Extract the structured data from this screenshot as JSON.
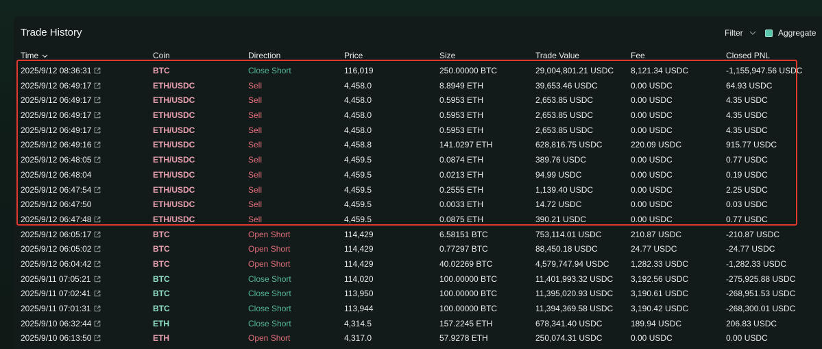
{
  "panel": {
    "title": "Trade History",
    "filter_label": "Filter",
    "aggregate_label": "Aggregate",
    "aggregate_checked": true
  },
  "columns": [
    "Time",
    "Coin",
    "Direction",
    "Price",
    "Size",
    "Trade Value",
    "Fee",
    "Closed PNL"
  ],
  "sort": {
    "column": "Time",
    "direction": "desc"
  },
  "colors": {
    "accent": "#58c7ab",
    "buy_green": "#57b89a",
    "sell_red": "#e36f7b",
    "coin_pink": "#e9a0b0",
    "highlight_red": "#e03a2e",
    "panel_bg": "#121b1a"
  },
  "rows": [
    {
      "time": "2025/9/12 08:36:31",
      "link": true,
      "coin": "BTC",
      "coin_color": "pink",
      "direction": "Close Short",
      "dir_color": "green",
      "price": "116,019",
      "size": "250.00000 BTC",
      "trade_value": "29,004,801.21 USDC",
      "fee": "8,121.34 USDC",
      "pnl": "-1,155,947.56 USDC"
    },
    {
      "time": "2025/9/12 06:49:17",
      "link": true,
      "coin": "ETH/USDC",
      "coin_color": "pink",
      "direction": "Sell",
      "dir_color": "red",
      "price": "4,458.0",
      "size": "8.8949 ETH",
      "trade_value": "39,653.46 USDC",
      "fee": "0.00 USDC",
      "pnl": "64.93 USDC"
    },
    {
      "time": "2025/9/12 06:49:17",
      "link": true,
      "coin": "ETH/USDC",
      "coin_color": "pink",
      "direction": "Sell",
      "dir_color": "red",
      "price": "4,458.0",
      "size": "0.5953 ETH",
      "trade_value": "2,653.85 USDC",
      "fee": "0.00 USDC",
      "pnl": "4.35 USDC"
    },
    {
      "time": "2025/9/12 06:49:17",
      "link": true,
      "coin": "ETH/USDC",
      "coin_color": "pink",
      "direction": "Sell",
      "dir_color": "red",
      "price": "4,458.0",
      "size": "0.5953 ETH",
      "trade_value": "2,653.85 USDC",
      "fee": "0.00 USDC",
      "pnl": "4.35 USDC"
    },
    {
      "time": "2025/9/12 06:49:17",
      "link": true,
      "coin": "ETH/USDC",
      "coin_color": "pink",
      "direction": "Sell",
      "dir_color": "red",
      "price": "4,458.0",
      "size": "0.5953 ETH",
      "trade_value": "2,653.85 USDC",
      "fee": "0.00 USDC",
      "pnl": "4.35 USDC"
    },
    {
      "time": "2025/9/12 06:49:16",
      "link": true,
      "coin": "ETH/USDC",
      "coin_color": "pink",
      "direction": "Sell",
      "dir_color": "red",
      "price": "4,458.8",
      "size": "141.0297 ETH",
      "trade_value": "628,816.75 USDC",
      "fee": "220.09 USDC",
      "pnl": "915.77 USDC"
    },
    {
      "time": "2025/9/12 06:48:05",
      "link": true,
      "coin": "ETH/USDC",
      "coin_color": "pink",
      "direction": "Sell",
      "dir_color": "red",
      "price": "4,459.5",
      "size": "0.0874 ETH",
      "trade_value": "389.76 USDC",
      "fee": "0.00 USDC",
      "pnl": "0.77 USDC"
    },
    {
      "time": "2025/9/12 06:48:04",
      "link": false,
      "coin": "ETH/USDC",
      "coin_color": "pink",
      "direction": "Sell",
      "dir_color": "red",
      "price": "4,459.5",
      "size": "0.0213 ETH",
      "trade_value": "94.99 USDC",
      "fee": "0.00 USDC",
      "pnl": "0.19 USDC"
    },
    {
      "time": "2025/9/12 06:47:54",
      "link": true,
      "coin": "ETH/USDC",
      "coin_color": "pink",
      "direction": "Sell",
      "dir_color": "red",
      "price": "4,459.5",
      "size": "0.2555 ETH",
      "trade_value": "1,139.40 USDC",
      "fee": "0.00 USDC",
      "pnl": "2.25 USDC"
    },
    {
      "time": "2025/9/12 06:47:50",
      "link": false,
      "coin": "ETH/USDC",
      "coin_color": "pink",
      "direction": "Sell",
      "dir_color": "red",
      "price": "4,459.5",
      "size": "0.0033 ETH",
      "trade_value": "14.72 USDC",
      "fee": "0.00 USDC",
      "pnl": "0.03 USDC"
    },
    {
      "time": "2025/9/12 06:47:48",
      "link": true,
      "coin": "ETH/USDC",
      "coin_color": "pink",
      "direction": "Sell",
      "dir_color": "red",
      "price": "4,459.5",
      "size": "0.0875 ETH",
      "trade_value": "390.21 USDC",
      "fee": "0.00 USDC",
      "pnl": "0.77 USDC"
    },
    {
      "time": "2025/9/12 06:05:17",
      "link": true,
      "coin": "BTC",
      "coin_color": "pink",
      "direction": "Open Short",
      "dir_color": "red",
      "price": "114,429",
      "size": "6.58151 BTC",
      "trade_value": "753,114.01 USDC",
      "fee": "210.87 USDC",
      "pnl": "-210.87 USDC"
    },
    {
      "time": "2025/9/12 06:05:02",
      "link": true,
      "coin": "BTC",
      "coin_color": "pink",
      "direction": "Open Short",
      "dir_color": "red",
      "price": "114,429",
      "size": "0.77297 BTC",
      "trade_value": "88,450.18 USDC",
      "fee": "24.77 USDC",
      "pnl": "-24.77 USDC"
    },
    {
      "time": "2025/9/12 06:04:42",
      "link": true,
      "coin": "BTC",
      "coin_color": "pink",
      "direction": "Open Short",
      "dir_color": "red",
      "price": "114,429",
      "size": "40.02269 BTC",
      "trade_value": "4,579,747.94 USDC",
      "fee": "1,282.33 USDC",
      "pnl": "-1,282.33 USDC"
    },
    {
      "time": "2025/9/11 07:05:21",
      "link": true,
      "coin": "BTC",
      "coin_color": "green",
      "direction": "Close Short",
      "dir_color": "green",
      "price": "114,020",
      "size": "100.00000 BTC",
      "trade_value": "11,401,993.32 USDC",
      "fee": "3,192.56 USDC",
      "pnl": "-275,925.88 USDC"
    },
    {
      "time": "2025/9/11 07:02:41",
      "link": true,
      "coin": "BTC",
      "coin_color": "green",
      "direction": "Close Short",
      "dir_color": "green",
      "price": "113,950",
      "size": "100.00000 BTC",
      "trade_value": "11,395,020.93 USDC",
      "fee": "3,190.61 USDC",
      "pnl": "-268,951.53 USDC"
    },
    {
      "time": "2025/9/11 07:01:31",
      "link": true,
      "coin": "BTC",
      "coin_color": "green",
      "direction": "Close Short",
      "dir_color": "green",
      "price": "113,944",
      "size": "100.00000 BTC",
      "trade_value": "11,394,369.58 USDC",
      "fee": "3,190.42 USDC",
      "pnl": "-268,300.01 USDC"
    },
    {
      "time": "2025/9/10 06:32:44",
      "link": true,
      "coin": "ETH",
      "coin_color": "green",
      "direction": "Close Short",
      "dir_color": "green",
      "price": "4,314.5",
      "size": "157.2245 ETH",
      "trade_value": "678,341.40 USDC",
      "fee": "189.94 USDC",
      "pnl": "206.83 USDC"
    },
    {
      "time": "2025/9/10 06:13:50",
      "link": true,
      "coin": "ETH",
      "coin_color": "pink",
      "direction": "Open Short",
      "dir_color": "red",
      "price": "4,317.0",
      "size": "57.9278 ETH",
      "trade_value": "250,074.31 USDC",
      "fee": "0.00 USDC",
      "pnl": "0.00 USDC"
    }
  ]
}
